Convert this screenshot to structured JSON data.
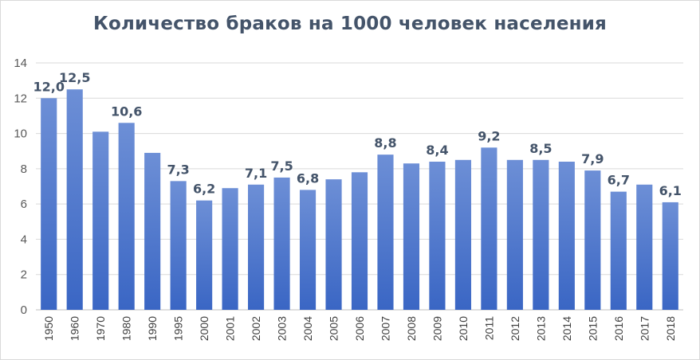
{
  "chart_data": {
    "type": "bar",
    "title": "Количество браков на 1000 человек населения",
    "xlabel": "",
    "ylabel": "",
    "ylim": [
      0,
      14
    ],
    "yticks": [
      0,
      2,
      4,
      6,
      8,
      10,
      12,
      14
    ],
    "grid": true,
    "legend": "none",
    "bar_color_top": "#6d8fd6",
    "bar_color_bottom": "#3a66c4",
    "categories": [
      "1950",
      "1960",
      "1970",
      "1980",
      "1990",
      "1995",
      "2000",
      "2001",
      "2002",
      "2003",
      "2004",
      "2005",
      "2006",
      "2007",
      "2008",
      "2009",
      "2010",
      "2011",
      "2012",
      "2013",
      "2014",
      "2015",
      "2016",
      "2017",
      "2018"
    ],
    "values": [
      12.0,
      12.5,
      10.1,
      10.6,
      8.9,
      7.3,
      6.2,
      6.9,
      7.1,
      7.5,
      6.8,
      7.4,
      7.8,
      8.8,
      8.3,
      8.4,
      8.5,
      9.2,
      8.5,
      8.5,
      8.4,
      7.9,
      6.7,
      7.1,
      6.1
    ],
    "data_labels": [
      "12,0",
      "12,5",
      "",
      "10,6",
      "",
      "7,3",
      "6,2",
      "",
      "7,1",
      "7,5",
      "6,8",
      "",
      "",
      "8,8",
      "",
      "8,4",
      "",
      "9,2",
      "",
      "8,5",
      "",
      "7,9",
      "6,7",
      "",
      "6,1"
    ]
  }
}
